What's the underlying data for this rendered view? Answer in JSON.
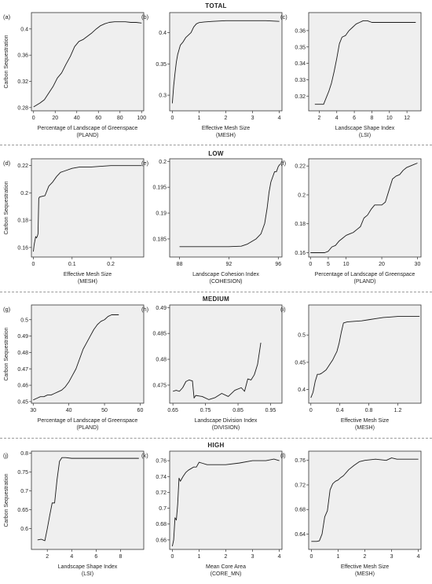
{
  "sections": [
    {
      "title": "TOTAL"
    },
    {
      "title": "LOW"
    },
    {
      "title": "MEDIUM"
    },
    {
      "title": "HIGH"
    }
  ],
  "ylabel": "Carbon Sequestration",
  "chart_data": [
    {
      "type": "line",
      "label": "(a)",
      "xlabel": [
        "Percentage of Landscape of Greenspace",
        "(PLAND)"
      ],
      "xlim": [
        -2,
        102
      ],
      "ylim": [
        0.275,
        0.425
      ],
      "xticks": [
        0,
        20,
        40,
        60,
        80,
        100
      ],
      "yticks": [
        0.28,
        0.32,
        0.36,
        0.4
      ],
      "x": [
        0,
        3,
        6,
        10,
        14,
        18,
        22,
        26,
        30,
        34,
        38,
        42,
        46,
        50,
        54,
        58,
        62,
        66,
        70,
        75,
        80,
        85,
        90,
        95,
        100
      ],
      "y": [
        0.281,
        0.284,
        0.287,
        0.292,
        0.302,
        0.312,
        0.325,
        0.333,
        0.346,
        0.358,
        0.373,
        0.381,
        0.384,
        0.389,
        0.394,
        0.4,
        0.405,
        0.408,
        0.41,
        0.411,
        0.411,
        0.411,
        0.41,
        0.41,
        0.409
      ]
    },
    {
      "type": "line",
      "label": "(b)",
      "xlabel": [
        "Effective Mesh Size",
        "(MESH)"
      ],
      "xlim": [
        -0.1,
        4.1
      ],
      "ylim": [
        0.275,
        0.432
      ],
      "xticks": [
        0,
        1,
        2,
        3,
        4
      ],
      "yticks": [
        0.3,
        0.35,
        0.4
      ],
      "x": [
        0,
        0.05,
        0.1,
        0.15,
        0.2,
        0.3,
        0.4,
        0.5,
        0.6,
        0.7,
        0.8,
        0.9,
        1.0,
        1.2,
        1.5,
        2.0,
        2.5,
        3.0,
        3.5,
        4.0
      ],
      "y": [
        0.287,
        0.315,
        0.335,
        0.353,
        0.365,
        0.38,
        0.385,
        0.392,
        0.396,
        0.4,
        0.409,
        0.414,
        0.416,
        0.417,
        0.418,
        0.419,
        0.419,
        0.419,
        0.419,
        0.418
      ]
    },
    {
      "type": "line",
      "label": "(c)",
      "xlabel": [
        "Landscape Shape Index",
        "(LSI)"
      ],
      "xlim": [
        0.8,
        13.6
      ],
      "ylim": [
        0.311,
        0.371
      ],
      "xticks": [
        2,
        4,
        6,
        8,
        10,
        12
      ],
      "yticks": [
        0.32,
        0.33,
        0.34,
        0.35,
        0.36
      ],
      "x": [
        1.5,
        2.0,
        2.5,
        2.8,
        3.1,
        3.4,
        3.7,
        4.0,
        4.3,
        4.6,
        5.0,
        5.4,
        5.8,
        6.2,
        6.6,
        7.0,
        7.5,
        8.0,
        9.0,
        10.0,
        11.0,
        12.0,
        13.0
      ],
      "y": [
        0.315,
        0.315,
        0.315,
        0.319,
        0.323,
        0.328,
        0.335,
        0.343,
        0.352,
        0.356,
        0.357,
        0.36,
        0.362,
        0.364,
        0.365,
        0.366,
        0.366,
        0.365,
        0.365,
        0.365,
        0.365,
        0.365,
        0.365
      ]
    },
    {
      "type": "line",
      "label": "(d)",
      "xlabel": [
        "Effective Mesh Size",
        "(MESH)"
      ],
      "xlim": [
        -0.005,
        0.285
      ],
      "ylim": [
        0.153,
        0.225
      ],
      "xticks": [
        0,
        0.1,
        0.2
      ],
      "yticks": [
        0.16,
        0.18,
        0.2,
        0.22
      ],
      "x": [
        0,
        0.002,
        0.004,
        0.006,
        0.008,
        0.01,
        0.012,
        0.014,
        0.016,
        0.03,
        0.04,
        0.05,
        0.06,
        0.07,
        0.08,
        0.1,
        0.12,
        0.15,
        0.2,
        0.28
      ],
      "y": [
        0.157,
        0.162,
        0.165,
        0.168,
        0.167,
        0.168,
        0.17,
        0.196,
        0.197,
        0.198,
        0.205,
        0.208,
        0.212,
        0.215,
        0.216,
        0.218,
        0.219,
        0.219,
        0.22,
        0.22
      ]
    },
    {
      "type": "line",
      "label": "(e)",
      "xlabel": [
        "Landscape Cohesion Index",
        "(COHESION)"
      ],
      "xlim": [
        87.2,
        96.3
      ],
      "ylim": [
        0.1815,
        0.2005
      ],
      "xticks": [
        88,
        92,
        96
      ],
      "yticks": [
        0.185,
        0.19,
        0.195,
        0.2
      ],
      "x": [
        88,
        89,
        90,
        91,
        92,
        93,
        93.5,
        94.2,
        94.6,
        94.9,
        95.1,
        95.25,
        95.4,
        95.55,
        95.7,
        95.85,
        96.0,
        96.15
      ],
      "y": [
        0.1835,
        0.1835,
        0.1835,
        0.1835,
        0.1835,
        0.1836,
        0.184,
        0.185,
        0.186,
        0.188,
        0.191,
        0.194,
        0.196,
        0.197,
        0.198,
        0.198,
        0.199,
        0.1995
      ]
    },
    {
      "type": "line",
      "label": "(f)",
      "xlabel": [
        "Percentage of Landscape of Greenspace",
        "(PLAND)"
      ],
      "xlim": [
        -0.5,
        31
      ],
      "ylim": [
        0.157,
        0.225
      ],
      "xticks": [
        0,
        5,
        10,
        20,
        30
      ],
      "yticks": [
        0.16,
        0.18,
        0.2,
        0.22
      ],
      "x": [
        0,
        2,
        4,
        5,
        6,
        7,
        8,
        9,
        10,
        11,
        12,
        13,
        14,
        15,
        16,
        17,
        18,
        19,
        20,
        21,
        22,
        23,
        24,
        25,
        26,
        27,
        28,
        29,
        30
      ],
      "y": [
        0.16,
        0.16,
        0.16,
        0.161,
        0.164,
        0.165,
        0.168,
        0.17,
        0.172,
        0.173,
        0.174,
        0.176,
        0.178,
        0.184,
        0.186,
        0.19,
        0.193,
        0.193,
        0.193,
        0.195,
        0.203,
        0.211,
        0.213,
        0.214,
        0.217,
        0.219,
        0.22,
        0.221,
        0.222
      ]
    },
    {
      "type": "line",
      "label": "(g)",
      "xlabel": [
        "Percentage of Landscape of Greenspace",
        "(PLAND)"
      ],
      "xlim": [
        29.5,
        61
      ],
      "ylim": [
        0.449,
        0.509
      ],
      "xticks": [
        30,
        40,
        50,
        60
      ],
      "yticks": [
        0.45,
        0.46,
        0.47,
        0.48,
        0.49,
        0.5
      ],
      "x": [
        30,
        31,
        32,
        33,
        34,
        35,
        36,
        37,
        38,
        39,
        40,
        41,
        42,
        43,
        44,
        45,
        46,
        47,
        48,
        49,
        50,
        51,
        52,
        53,
        54
      ],
      "y": [
        0.451,
        0.452,
        0.453,
        0.453,
        0.454,
        0.454,
        0.455,
        0.456,
        0.457,
        0.459,
        0.462,
        0.466,
        0.47,
        0.476,
        0.482,
        0.486,
        0.49,
        0.494,
        0.497,
        0.499,
        0.5,
        0.502,
        0.503,
        0.503,
        0.503
      ]
    },
    {
      "type": "line",
      "label": "(h)",
      "xlabel": [
        "Landscape Division Index",
        "(DIVISION)"
      ],
      "xlim": [
        0.64,
        0.985
      ],
      "ylim": [
        0.4715,
        0.4905
      ],
      "xticks": [
        0.65,
        0.75,
        0.85,
        0.95
      ],
      "yticks": [
        0.475,
        0.48,
        0.485,
        0.49
      ],
      "x": [
        0.65,
        0.66,
        0.67,
        0.68,
        0.69,
        0.7,
        0.71,
        0.715,
        0.72,
        0.74,
        0.76,
        0.78,
        0.8,
        0.82,
        0.84,
        0.86,
        0.87,
        0.88,
        0.89,
        0.9,
        0.91,
        0.92
      ],
      "y": [
        0.4738,
        0.474,
        0.4738,
        0.4745,
        0.4757,
        0.476,
        0.4758,
        0.4725,
        0.473,
        0.4728,
        0.4722,
        0.4726,
        0.4734,
        0.4728,
        0.474,
        0.4745,
        0.4738,
        0.4762,
        0.476,
        0.477,
        0.479,
        0.4832
      ]
    },
    {
      "type": "line",
      "label": "(i)",
      "xlabel": [
        "Effective Mesh Size",
        "(MESH)"
      ],
      "xlim": [
        -0.03,
        1.52
      ],
      "ylim": [
        0.375,
        0.555
      ],
      "xticks": [
        0,
        0.4,
        0.8,
        1.2
      ],
      "yticks": [
        0.4,
        0.45,
        0.5
      ],
      "x": [
        0,
        0.03,
        0.06,
        0.09,
        0.12,
        0.15,
        0.18,
        0.21,
        0.24,
        0.27,
        0.3,
        0.33,
        0.36,
        0.39,
        0.42,
        0.45,
        0.5,
        0.6,
        0.7,
        0.8,
        0.9,
        1.0,
        1.1,
        1.2,
        1.3,
        1.4,
        1.5
      ],
      "y": [
        0.385,
        0.395,
        0.415,
        0.428,
        0.428,
        0.43,
        0.433,
        0.436,
        0.442,
        0.448,
        0.454,
        0.462,
        0.47,
        0.485,
        0.505,
        0.522,
        0.524,
        0.525,
        0.526,
        0.528,
        0.53,
        0.532,
        0.533,
        0.534,
        0.534,
        0.534,
        0.534
      ]
    },
    {
      "type": "line",
      "label": "(j)",
      "xlabel": [
        "Landscape Shape Index",
        "(LSI)"
      ],
      "xlim": [
        0.7,
        9.9
      ],
      "ylim": [
        0.545,
        0.805
      ],
      "xticks": [
        2,
        4,
        6,
        8
      ],
      "yticks": [
        0.6,
        0.65,
        0.7,
        0.75,
        0.8
      ],
      "x": [
        1.2,
        1.5,
        1.8,
        2.0,
        2.2,
        2.4,
        2.6,
        2.8,
        3.0,
        3.2,
        3.5,
        4.0,
        5.0,
        6.0,
        7.0,
        8.0,
        9.5
      ],
      "y": [
        0.57,
        0.572,
        0.568,
        0.6,
        0.635,
        0.668,
        0.668,
        0.73,
        0.778,
        0.788,
        0.788,
        0.786,
        0.786,
        0.786,
        0.786,
        0.786,
        0.786
      ]
    },
    {
      "type": "line",
      "label": "(k)",
      "xlabel": [
        "Mean Core Area",
        "(CORE_MN)"
      ],
      "xlim": [
        -0.1,
        4.1
      ],
      "ylim": [
        0.648,
        0.772
      ],
      "xticks": [
        0,
        1,
        2,
        3,
        4
      ],
      "yticks": [
        0.66,
        0.68,
        0.7,
        0.72,
        0.74,
        0.76
      ],
      "x": [
        0,
        0.05,
        0.1,
        0.15,
        0.2,
        0.25,
        0.3,
        0.35,
        0.4,
        0.5,
        0.6,
        0.7,
        0.8,
        0.9,
        1.0,
        1.1,
        1.3,
        1.6,
        2.0,
        2.5,
        3.0,
        3.5,
        3.8,
        4.0
      ],
      "y": [
        0.652,
        0.66,
        0.688,
        0.685,
        0.705,
        0.738,
        0.734,
        0.737,
        0.74,
        0.745,
        0.748,
        0.75,
        0.752,
        0.752,
        0.758,
        0.757,
        0.755,
        0.755,
        0.755,
        0.757,
        0.76,
        0.76,
        0.762,
        0.76
      ]
    },
    {
      "type": "line",
      "label": "(l)",
      "xlabel": [
        "Effective Mesh Size",
        "(MESH)"
      ],
      "xlim": [
        -0.1,
        4.1
      ],
      "ylim": [
        0.615,
        0.775
      ],
      "xticks": [
        0,
        1,
        2,
        3,
        4
      ],
      "yticks": [
        0.64,
        0.68,
        0.72,
        0.76
      ],
      "x": [
        0,
        0.1,
        0.2,
        0.3,
        0.4,
        0.5,
        0.6,
        0.7,
        0.8,
        0.9,
        1.0,
        1.1,
        1.2,
        1.4,
        1.6,
        1.8,
        2.0,
        2.4,
        2.8,
        3.0,
        3.2,
        3.6,
        4.0
      ],
      "y": [
        0.628,
        0.628,
        0.628,
        0.629,
        0.64,
        0.668,
        0.678,
        0.712,
        0.722,
        0.726,
        0.728,
        0.732,
        0.735,
        0.745,
        0.752,
        0.758,
        0.76,
        0.762,
        0.76,
        0.764,
        0.762,
        0.762,
        0.762
      ]
    }
  ]
}
